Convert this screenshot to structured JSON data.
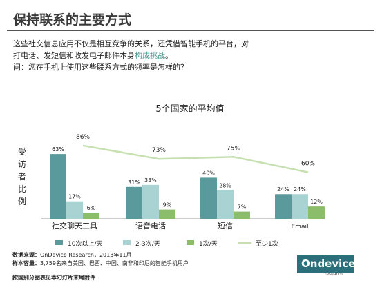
{
  "header": {
    "title": "保持联系的主要方式"
  },
  "intro": {
    "line1": "这些社交信息应用不仅是相互竞争的关系，还凭借智能手机的平台，对",
    "line2_prefix": "打电话、发短信和收发电子邮件本身",
    "line2_highlight": "构成挑战",
    "line2_suffix": "。",
    "line3": "问：您在手机上使用这些联系方式的频率是怎样的？"
  },
  "colors": {
    "series1": "#5a9a9c",
    "series2": "#a9d2d3",
    "series3": "#8bbd6a",
    "line": "#c6e0b0"
  },
  "chart_data": {
    "type": "bar",
    "title": "5个国家的平均值",
    "ylabel": "受访者比例",
    "categories": [
      "社交聊天工具",
      "语音电话",
      "短信",
      "Email"
    ],
    "series": [
      {
        "name": "10次以上/天",
        "type": "bar",
        "values": [
          63,
          31,
          40,
          24
        ],
        "labels": [
          "63%",
          "31%",
          "40%",
          "24%"
        ]
      },
      {
        "name": "2-3次/天",
        "type": "bar",
        "values": [
          17,
          33,
          28,
          24
        ],
        "labels": [
          "17%",
          "33%",
          "28%",
          "24%"
        ]
      },
      {
        "name": "1次/天",
        "type": "bar",
        "values": [
          6,
          9,
          7,
          12
        ],
        "labels": [
          "6%",
          "9%",
          "7%",
          "12%"
        ]
      },
      {
        "name": "至少1次",
        "type": "line",
        "values": [
          86,
          73,
          75,
          60
        ],
        "labels": [
          "86%",
          "73%",
          "75%",
          "60%"
        ]
      }
    ],
    "ylim": [
      0,
      100
    ],
    "legend_position": "bottom",
    "grid": false
  },
  "source": {
    "label": "数据来源：",
    "text": "OnDevice Research，2013年11月",
    "sample_label": "样本容量：",
    "sample_text": "3,759名来自美国、巴西、中国、南非和印尼的智能手机用户"
  },
  "footnote": "按国别分图表见本幻灯片末尾附件",
  "logo": {
    "on": "On",
    "device": "device",
    "sub": "research"
  }
}
